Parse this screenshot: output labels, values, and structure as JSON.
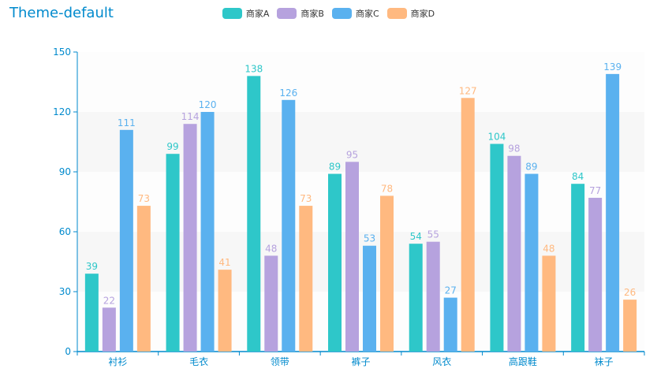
{
  "chart_data": {
    "type": "bar",
    "title": "Theme-default",
    "categories": [
      "衬衫",
      "毛衣",
      "领带",
      "裤子",
      "风衣",
      "高跟鞋",
      "袜子"
    ],
    "series": [
      {
        "name": "商家A",
        "color": "#2ec7c9",
        "values": [
          39,
          99,
          138,
          89,
          54,
          104,
          84
        ]
      },
      {
        "name": "商家B",
        "color": "#b6a2de",
        "values": [
          22,
          114,
          48,
          95,
          55,
          98,
          77
        ]
      },
      {
        "name": "商家C",
        "color": "#5ab1ef",
        "values": [
          111,
          120,
          126,
          53,
          27,
          89,
          139
        ]
      },
      {
        "name": "商家D",
        "color": "#ffb980",
        "values": [
          73,
          41,
          73,
          78,
          127,
          48,
          26
        ]
      }
    ],
    "ylim": [
      0,
      150
    ],
    "yticks": [
      0,
      30,
      60,
      90,
      120,
      150
    ],
    "xlabel": "",
    "ylabel": "",
    "legend_position": "top-center",
    "axis_color": "#008acd",
    "title_color": "#008acd"
  }
}
